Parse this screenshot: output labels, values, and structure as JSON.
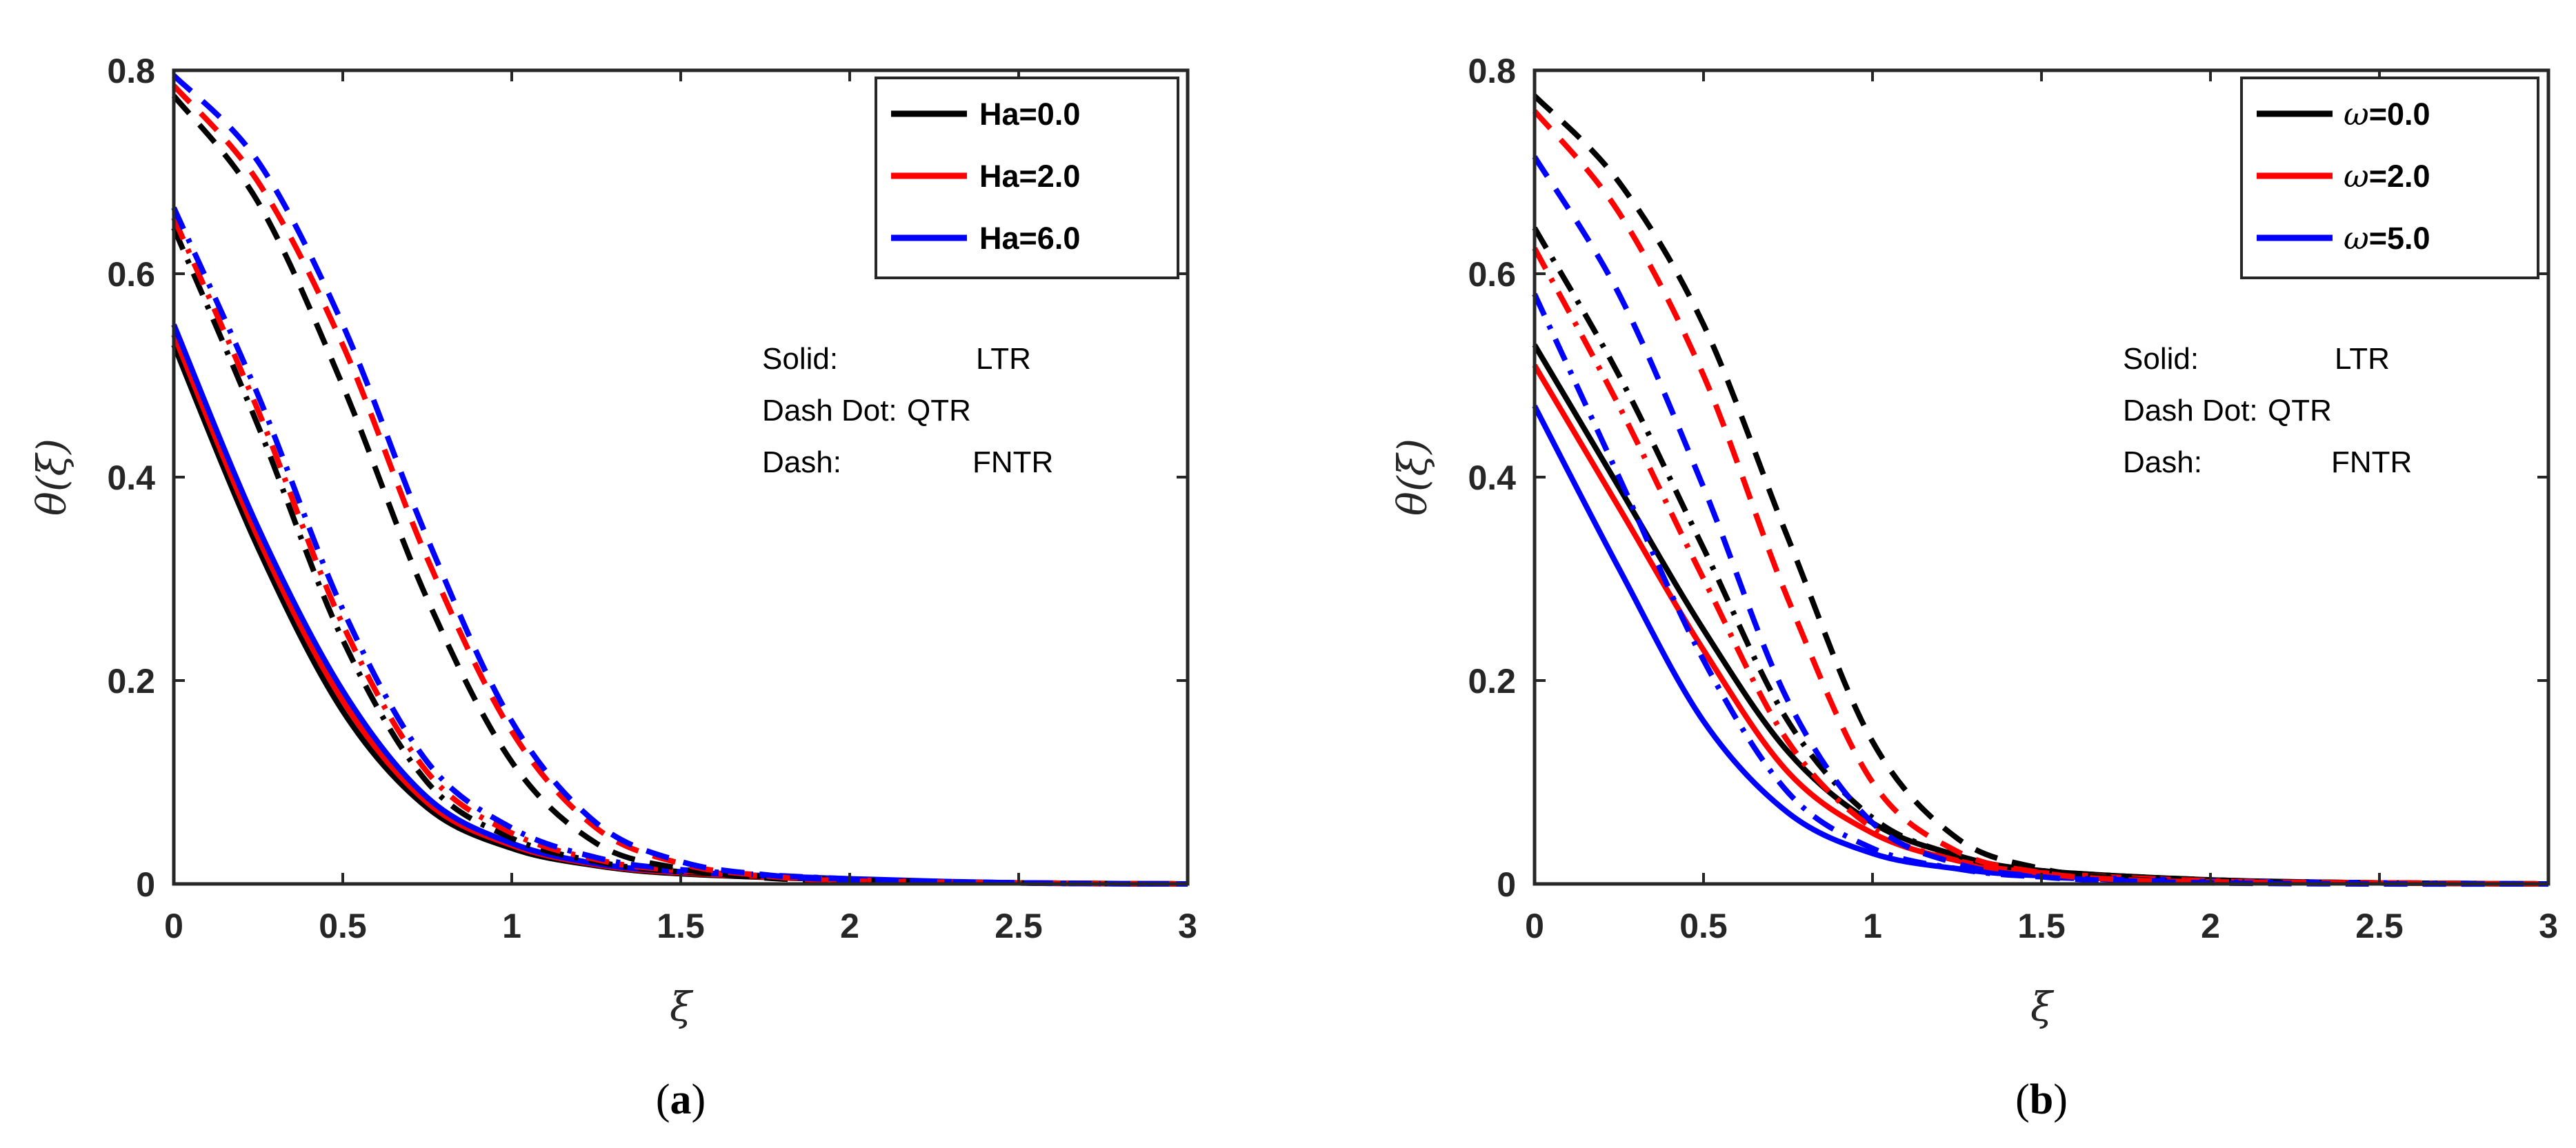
{
  "chart_data": [
    {
      "id": "a",
      "type": "line",
      "panel_label": "a",
      "xlabel": "ξ",
      "ylabel": "θ(ξ)",
      "xlim": [
        0,
        3
      ],
      "ylim": [
        0,
        0.8
      ],
      "xticks": [
        "0",
        "0.5",
        "1",
        "1.5",
        "2",
        "2.5",
        "3"
      ],
      "yticks": [
        "0",
        "0.2",
        "0.4",
        "0.6",
        "0.8"
      ],
      "legend": [
        {
          "label": "Ha=0.0",
          "color": "#000000"
        },
        {
          "label": "Ha=2.0",
          "color": "#ff0000"
        },
        {
          "label": "Ha=6.0",
          "color": "#0000ff"
        }
      ],
      "notes": [
        {
          "key": "Solid:",
          "value": "LTR"
        },
        {
          "key": "Dash Dot:",
          "value": "QTR"
        },
        {
          "key": "Dash:",
          "value": "FNTR"
        }
      ],
      "series": [
        {
          "name": "Ha=0.0 LTR",
          "color": "#000000",
          "style": "solid",
          "x": [
            0,
            0.25,
            0.5,
            0.75,
            1.0,
            1.25,
            1.5,
            2.0,
            2.5,
            3.0
          ],
          "y": [
            0.53,
            0.33,
            0.17,
            0.075,
            0.035,
            0.018,
            0.01,
            0.004,
            0.001,
            0.0
          ]
        },
        {
          "name": "Ha=2.0 LTR",
          "color": "#ff0000",
          "style": "solid",
          "x": [
            0,
            0.25,
            0.5,
            0.75,
            1.0,
            1.25,
            1.5,
            2.0,
            2.5,
            3.0
          ],
          "y": [
            0.54,
            0.34,
            0.18,
            0.08,
            0.038,
            0.019,
            0.011,
            0.004,
            0.001,
            0.0
          ]
        },
        {
          "name": "Ha=6.0 LTR",
          "color": "#0000ff",
          "style": "solid",
          "x": [
            0,
            0.25,
            0.5,
            0.75,
            1.0,
            1.25,
            1.5,
            2.0,
            2.5,
            3.0
          ],
          "y": [
            0.55,
            0.35,
            0.19,
            0.085,
            0.04,
            0.02,
            0.012,
            0.005,
            0.001,
            0.0
          ]
        },
        {
          "name": "Ha=0.0 QTR",
          "color": "#000000",
          "style": "dashdot",
          "x": [
            0,
            0.25,
            0.5,
            0.75,
            1.0,
            1.25,
            1.5,
            2.0,
            2.5,
            3.0
          ],
          "y": [
            0.645,
            0.45,
            0.24,
            0.1,
            0.045,
            0.022,
            0.012,
            0.004,
            0.001,
            0.0
          ]
        },
        {
          "name": "Ha=2.0 QTR",
          "color": "#ff0000",
          "style": "dashdot",
          "x": [
            0,
            0.25,
            0.5,
            0.75,
            1.0,
            1.25,
            1.5,
            2.0,
            2.5,
            3.0
          ],
          "y": [
            0.655,
            0.465,
            0.255,
            0.11,
            0.05,
            0.024,
            0.013,
            0.004,
            0.001,
            0.0
          ]
        },
        {
          "name": "Ha=6.0 QTR",
          "color": "#0000ff",
          "style": "dashdot",
          "x": [
            0,
            0.25,
            0.5,
            0.75,
            1.0,
            1.25,
            1.5,
            2.0,
            2.5,
            3.0
          ],
          "y": [
            0.665,
            0.48,
            0.27,
            0.12,
            0.055,
            0.026,
            0.014,
            0.005,
            0.001,
            0.0
          ]
        },
        {
          "name": "Ha=0.0 FNTR",
          "color": "#000000",
          "style": "dash",
          "x": [
            0,
            0.25,
            0.5,
            0.75,
            1.0,
            1.25,
            1.5,
            1.75,
            2.0,
            2.5,
            3.0
          ],
          "y": [
            0.775,
            0.67,
            0.49,
            0.28,
            0.12,
            0.04,
            0.015,
            0.006,
            0.003,
            0.001,
            0.0
          ]
        },
        {
          "name": "Ha=2.0 FNTR",
          "color": "#ff0000",
          "style": "dash",
          "x": [
            0,
            0.25,
            0.5,
            0.75,
            1.0,
            1.25,
            1.5,
            1.75,
            2.0,
            2.5,
            3.0
          ],
          "y": [
            0.785,
            0.69,
            0.53,
            0.32,
            0.15,
            0.055,
            0.02,
            0.008,
            0.003,
            0.001,
            0.0
          ]
        },
        {
          "name": "Ha=6.0 FNTR",
          "color": "#0000ff",
          "style": "dash",
          "x": [
            0,
            0.25,
            0.5,
            0.75,
            1.0,
            1.25,
            1.5,
            1.75,
            2.0,
            2.5,
            3.0
          ],
          "y": [
            0.795,
            0.71,
            0.55,
            0.34,
            0.16,
            0.06,
            0.022,
            0.009,
            0.004,
            0.001,
            0.0
          ]
        }
      ]
    },
    {
      "id": "b",
      "type": "line",
      "panel_label": "b",
      "xlabel": "ξ",
      "ylabel": "θ(ξ)",
      "xlim": [
        0,
        3
      ],
      "ylim": [
        0,
        0.8
      ],
      "xticks": [
        "0",
        "0.5",
        "1",
        "1.5",
        "2",
        "2.5",
        "3"
      ],
      "yticks": [
        "0",
        "0.2",
        "0.4",
        "0.6",
        "0.8"
      ],
      "legend": [
        {
          "label": "ω=0.0",
          "symbol": "ω",
          "value": "=0.0",
          "color": "#000000"
        },
        {
          "label": "ω=2.0",
          "symbol": "ω",
          "value": "=2.0",
          "color": "#ff0000"
        },
        {
          "label": "ω=5.0",
          "symbol": "ω",
          "value": "=5.0",
          "color": "#0000ff"
        }
      ],
      "notes": [
        {
          "key": "Solid:",
          "value": "LTR"
        },
        {
          "key": "Dash Dot:",
          "value": "QTR"
        },
        {
          "key": "Dash:",
          "value": "FNTR"
        }
      ],
      "series": [
        {
          "name": "ω=0.0 LTR",
          "color": "#000000",
          "style": "solid",
          "x": [
            0,
            0.25,
            0.5,
            0.75,
            1.0,
            1.25,
            1.5,
            2.0,
            2.5,
            3.0
          ],
          "y": [
            0.53,
            0.39,
            0.25,
            0.13,
            0.06,
            0.028,
            0.013,
            0.004,
            0.001,
            0.0
          ]
        },
        {
          "name": "ω=2.0 LTR",
          "color": "#ff0000",
          "style": "solid",
          "x": [
            0,
            0.25,
            0.5,
            0.75,
            1.0,
            1.25,
            1.5,
            2.0,
            2.5,
            3.0
          ],
          "y": [
            0.51,
            0.37,
            0.23,
            0.11,
            0.05,
            0.023,
            0.011,
            0.003,
            0.001,
            0.0
          ]
        },
        {
          "name": "ω=5.0 LTR",
          "color": "#0000ff",
          "style": "solid",
          "x": [
            0,
            0.25,
            0.5,
            0.75,
            1.0,
            1.25,
            1.5,
            2.0,
            2.5,
            3.0
          ],
          "y": [
            0.47,
            0.31,
            0.16,
            0.07,
            0.03,
            0.015,
            0.008,
            0.003,
            0.001,
            0.0
          ]
        },
        {
          "name": "ω=0.0 QTR",
          "color": "#000000",
          "style": "dashdot",
          "x": [
            0,
            0.25,
            0.5,
            0.75,
            1.0,
            1.25,
            1.5,
            2.0,
            2.5,
            3.0
          ],
          "y": [
            0.645,
            0.5,
            0.33,
            0.16,
            0.065,
            0.028,
            0.013,
            0.004,
            0.001,
            0.0
          ]
        },
        {
          "name": "ω=2.0 QTR",
          "color": "#ff0000",
          "style": "dashdot",
          "x": [
            0,
            0.25,
            0.5,
            0.75,
            1.0,
            1.25,
            1.5,
            2.0,
            2.5,
            3.0
          ],
          "y": [
            0.625,
            0.47,
            0.3,
            0.14,
            0.055,
            0.023,
            0.011,
            0.003,
            0.001,
            0.0
          ]
        },
        {
          "name": "ω=5.0 QTR",
          "color": "#0000ff",
          "style": "dashdot",
          "x": [
            0,
            0.25,
            0.5,
            0.75,
            1.0,
            1.25,
            1.5,
            2.0,
            2.5,
            3.0
          ],
          "y": [
            0.58,
            0.4,
            0.22,
            0.09,
            0.035,
            0.015,
            0.007,
            0.002,
            0.001,
            0.0
          ]
        },
        {
          "name": "ω=0.0 FNTR",
          "color": "#000000",
          "style": "dash",
          "x": [
            0,
            0.25,
            0.5,
            0.75,
            1.0,
            1.25,
            1.5,
            1.75,
            2.0,
            2.5,
            3.0
          ],
          "y": [
            0.775,
            0.69,
            0.55,
            0.34,
            0.14,
            0.045,
            0.015,
            0.005,
            0.002,
            0.001,
            0.0
          ]
        },
        {
          "name": "ω=2.0 FNTR",
          "color": "#ff0000",
          "style": "dash",
          "x": [
            0,
            0.25,
            0.5,
            0.75,
            1.0,
            1.25,
            1.5,
            1.75,
            2.0,
            2.5,
            3.0
          ],
          "y": [
            0.76,
            0.66,
            0.5,
            0.28,
            0.1,
            0.032,
            0.011,
            0.004,
            0.002,
            0.001,
            0.0
          ]
        },
        {
          "name": "ω=5.0 FNTR",
          "color": "#0000ff",
          "style": "dash",
          "x": [
            0,
            0.25,
            0.5,
            0.75,
            1.0,
            1.25,
            1.5,
            1.75,
            2.0,
            2.5,
            3.0
          ],
          "y": [
            0.715,
            0.58,
            0.39,
            0.18,
            0.06,
            0.02,
            0.007,
            0.003,
            0.001,
            0.0,
            0.0
          ]
        }
      ]
    }
  ]
}
